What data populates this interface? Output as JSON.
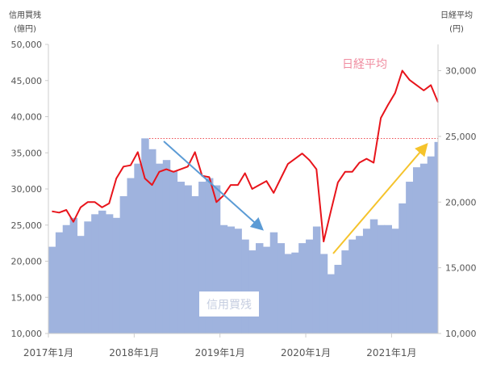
{
  "chart_data": {
    "type": "area+line",
    "left_axis": {
      "title": "信用買残",
      "unit": "(億円)",
      "range": [
        10000,
        50000
      ],
      "ticks": [
        "10,000",
        "15,000",
        "20,000",
        "25,000",
        "30,000",
        "35,000",
        "40,000",
        "45,000",
        "50,000"
      ]
    },
    "right_axis": {
      "title": "日経平均",
      "unit": "(円)",
      "range": [
        10000,
        32000
      ],
      "ticks": [
        "10,000",
        "15,000",
        "20,000",
        "25,000",
        "30,000"
      ]
    },
    "x_ticks": [
      "2017年1月",
      "2018年1月",
      "2019年1月",
      "2020年1月",
      "2021年1月"
    ],
    "x_range": [
      "2017-01",
      "2021-07"
    ],
    "grid": false,
    "colors": {
      "margin": "#9fb3de",
      "nikkei": "#e8141b",
      "reference": "#e8141b",
      "arrow_down": "#5b9bd5",
      "arrow_up": "#f5c32c",
      "nikkei_label": "#f08ca0"
    },
    "months": [
      "2017-01",
      "2017-02",
      "2017-03",
      "2017-04",
      "2017-05",
      "2017-06",
      "2017-07",
      "2017-08",
      "2017-09",
      "2017-10",
      "2017-11",
      "2017-12",
      "2018-01",
      "2018-02",
      "2018-03",
      "2018-04",
      "2018-05",
      "2018-06",
      "2018-07",
      "2018-08",
      "2018-09",
      "2018-10",
      "2018-11",
      "2018-12",
      "2019-01",
      "2019-02",
      "2019-03",
      "2019-04",
      "2019-05",
      "2019-06",
      "2019-07",
      "2019-08",
      "2019-09",
      "2019-10",
      "2019-11",
      "2019-12",
      "2020-01",
      "2020-02",
      "2020-03",
      "2020-04",
      "2020-05",
      "2020-06",
      "2020-07",
      "2020-08",
      "2020-09",
      "2020-10",
      "2020-11",
      "2020-12",
      "2021-01",
      "2021-02",
      "2021-03",
      "2021-04",
      "2021-05",
      "2021-06",
      "2021-07"
    ],
    "series": [
      {
        "name": "信用買残",
        "axis": "left",
        "type": "area",
        "values": [
          22000,
          24000,
          25000,
          26000,
          23500,
          25500,
          26500,
          27000,
          26500,
          26000,
          29000,
          31500,
          33500,
          37000,
          35500,
          33500,
          34000,
          32500,
          31000,
          30500,
          29000,
          31000,
          31500,
          30500,
          25000,
          24800,
          24500,
          23000,
          21500,
          22500,
          22000,
          24000,
          22500,
          21000,
          21200,
          22500,
          23000,
          24800,
          21000,
          18200,
          19500,
          21500,
          23000,
          23500,
          24500,
          25800,
          25000,
          25000,
          24500,
          28000,
          31000,
          33000,
          33500,
          34500,
          36500
        ]
      },
      {
        "name": "日経平均",
        "axis": "right",
        "type": "line",
        "values": [
          19300,
          19200,
          19400,
          18500,
          19600,
          20000,
          20000,
          19600,
          19900,
          21800,
          22700,
          22800,
          23800,
          21800,
          21300,
          22300,
          22500,
          22300,
          22500,
          22700,
          23800,
          22000,
          21900,
          20000,
          20500,
          21300,
          21300,
          22200,
          21000,
          21300,
          21600,
          20700,
          21800,
          22900,
          23300,
          23700,
          23200,
          22500,
          17000,
          19300,
          21500,
          22300,
          22300,
          23000,
          23300,
          23000,
          26400,
          27400,
          28300,
          30000,
          29300,
          28900,
          28500,
          28900,
          27600
        ]
      }
    ],
    "reference_line": {
      "axis": "left",
      "value": 37000,
      "style": "dotted"
    },
    "annotations": {
      "nikkei_label": "日経平均",
      "margin_label": "信用買残"
    }
  }
}
